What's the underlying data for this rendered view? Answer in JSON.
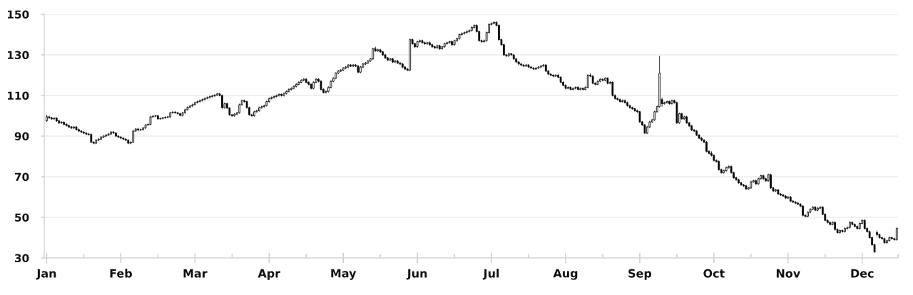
{
  "chart_data": {
    "type": "candlestick",
    "categories": [
      "Jan",
      null,
      null,
      null,
      null,
      null,
      null,
      null,
      null,
      null,
      null,
      null,
      null,
      null,
      null,
      null,
      null,
      null,
      null,
      null,
      null,
      null,
      null,
      null,
      null,
      null,
      null,
      null,
      null,
      null,
      "Feb",
      null,
      null,
      null,
      null,
      null,
      null,
      null,
      null,
      null,
      null,
      null,
      null,
      null,
      null,
      null,
      null,
      null,
      null,
      null,
      null,
      null,
      null,
      null,
      null,
      null,
      null,
      null,
      null,
      null,
      "Mar",
      null,
      null,
      null,
      null,
      null,
      null,
      null,
      null,
      null,
      null,
      null,
      null,
      null,
      null,
      null,
      null,
      null,
      null,
      null,
      null,
      null,
      null,
      null,
      null,
      null,
      null,
      null,
      null,
      null,
      "Apr",
      null,
      null,
      null,
      null,
      null,
      null,
      null,
      null,
      null,
      null,
      null,
      null,
      null,
      null,
      null,
      null,
      null,
      null,
      null,
      null,
      null,
      null,
      null,
      null,
      null,
      null,
      null,
      null,
      null,
      "May",
      null,
      null,
      null,
      null,
      null,
      null,
      null,
      null,
      null,
      null,
      null,
      null,
      null,
      null,
      null,
      null,
      null,
      null,
      null,
      null,
      null,
      null,
      null,
      null,
      null,
      null,
      null,
      null,
      null,
      "Jun",
      null,
      null,
      null,
      null,
      null,
      null,
      null,
      null,
      null,
      null,
      null,
      null,
      null,
      null,
      null,
      null,
      null,
      null,
      null,
      null,
      null,
      null,
      null,
      null,
      null,
      null,
      null,
      null,
      null,
      "Jul",
      null,
      null,
      null,
      null,
      null,
      null,
      null,
      null,
      null,
      null,
      null,
      null,
      null,
      null,
      null,
      null,
      null,
      null,
      null,
      null,
      null,
      null,
      null,
      null,
      null,
      null,
      null,
      null,
      null,
      "Aug",
      null,
      null,
      null,
      null,
      null,
      null,
      null,
      null,
      null,
      null,
      null,
      null,
      null,
      null,
      null,
      null,
      null,
      null,
      null,
      null,
      null,
      null,
      null,
      null,
      null,
      null,
      null,
      null,
      null,
      "Sep",
      null,
      null,
      null,
      null,
      null,
      null,
      null,
      null,
      null,
      null,
      null,
      null,
      null,
      null,
      null,
      null,
      null,
      null,
      null,
      null,
      null,
      null,
      null,
      null,
      null,
      null,
      null,
      null,
      null,
      "Oct",
      null,
      null,
      null,
      null,
      null,
      null,
      null,
      null,
      null,
      null,
      null,
      null,
      null,
      null,
      null,
      null,
      null,
      null,
      null,
      null,
      null,
      null,
      null,
      null,
      null,
      null,
      null,
      null,
      null,
      "Nov",
      null,
      null,
      null,
      null,
      null,
      null,
      null,
      null,
      null,
      null,
      null,
      null,
      null,
      null,
      null,
      null,
      null,
      null,
      null,
      null,
      null,
      null,
      null,
      null,
      null,
      null,
      null,
      null,
      null,
      "Dec",
      null,
      null,
      null,
      null,
      null,
      null,
      null,
      null,
      null,
      null,
      null,
      null,
      null,
      null
    ],
    "ohlc": [
      [
        97.5,
        100.5,
        97,
        99.5
      ],
      [
        99.5,
        100,
        98.5,
        99
      ],
      [
        99,
        99.5,
        98,
        98.5
      ],
      [
        98.5,
        99.3,
        98,
        98.8
      ],
      [
        98.8,
        99.3,
        97,
        97.5
      ],
      [
        97.5,
        98,
        96,
        96.5
      ],
      [
        96.5,
        97.3,
        96,
        96.8
      ],
      [
        96.8,
        97.3,
        95.3,
        95.8
      ],
      [
        95.8,
        96.3,
        94.7,
        95.2
      ],
      [
        95.2,
        95.7,
        94,
        94.5
      ],
      [
        94.5,
        95,
        93.5,
        94
      ],
      [
        94,
        95,
        93.5,
        94.5
      ],
      [
        94.5,
        95,
        92.7,
        93.2
      ],
      [
        93.2,
        93.7,
        92,
        92.5
      ],
      [
        92.5,
        93,
        91.5,
        92
      ],
      [
        92,
        92.5,
        91,
        91.5
      ],
      [
        91.5,
        92,
        90.5,
        91
      ],
      [
        91,
        91.5,
        90.3,
        90.8
      ],
      [
        90.8,
        91.3,
        86.5,
        87
      ],
      [
        87,
        87.5,
        86,
        86.5
      ],
      [
        86.5,
        88.5,
        86,
        88
      ],
      [
        88,
        89,
        87.5,
        88.5
      ],
      [
        88.5,
        90,
        88,
        89.5
      ],
      [
        89.5,
        90.5,
        89,
        90
      ],
      [
        90,
        91,
        89.5,
        90.5
      ],
      [
        90.5,
        91.5,
        90,
        91
      ],
      [
        91,
        92.5,
        90.5,
        92
      ],
      [
        92,
        92.5,
        91,
        91.5
      ],
      [
        91.5,
        92,
        89.5,
        90
      ],
      [
        90,
        90.5,
        89,
        89.5
      ],
      [
        89.5,
        90,
        88.5,
        89
      ],
      [
        89,
        89.5,
        88,
        88.5
      ],
      [
        88.5,
        89,
        87.5,
        88
      ],
      [
        88,
        88.5,
        86,
        86.5
      ],
      [
        86.5,
        87.5,
        86,
        87
      ],
      [
        87,
        93,
        86.5,
        92.5
      ],
      [
        92.5,
        94,
        92,
        93.5
      ],
      [
        93.5,
        94,
        92.5,
        93
      ],
      [
        93,
        93.7,
        92.5,
        93.2
      ],
      [
        93.2,
        94.5,
        92.7,
        94
      ],
      [
        94,
        96,
        93.5,
        95.5
      ],
      [
        95.5,
        96.3,
        95,
        95.8
      ],
      [
        95.8,
        100,
        95.3,
        99.5
      ],
      [
        99.5,
        100.3,
        99,
        99.8
      ],
      [
        99.8,
        100.5,
        99.3,
        100
      ],
      [
        100,
        100.5,
        98,
        98.5
      ],
      [
        98.5,
        99.2,
        98,
        98.7
      ],
      [
        98.7,
        99.5,
        98.2,
        99
      ],
      [
        99,
        99.8,
        98.5,
        99.3
      ],
      [
        99.3,
        100,
        98.8,
        99.5
      ],
      [
        99.5,
        102,
        99,
        101.5
      ],
      [
        101.5,
        102.3,
        101,
        101.8
      ],
      [
        101.8,
        102.3,
        101,
        101.5
      ],
      [
        101.5,
        102,
        100.5,
        101
      ],
      [
        101,
        101.5,
        99.7,
        100.2
      ],
      [
        100.2,
        102,
        99.7,
        101.5
      ],
      [
        101.5,
        103.5,
        101,
        103
      ],
      [
        103,
        104.7,
        102.5,
        104.2
      ],
      [
        104.2,
        105.3,
        103.7,
        104.8
      ],
      [
        104.8,
        106,
        104.3,
        105.5
      ],
      [
        105.5,
        107,
        105,
        106.5
      ],
      [
        106.5,
        107.5,
        106,
        107
      ],
      [
        107,
        108,
        106.5,
        107.5
      ],
      [
        107.5,
        108.5,
        107,
        108
      ],
      [
        108,
        109.1,
        107.5,
        108.6
      ],
      [
        108.6,
        109.5,
        108.1,
        109
      ],
      [
        109,
        110,
        108.5,
        109.5
      ],
      [
        109.5,
        110.3,
        109,
        109.8
      ],
      [
        109.8,
        110.7,
        109.3,
        110.2
      ],
      [
        110.2,
        111.3,
        109.7,
        110.8
      ],
      [
        110.8,
        111.3,
        109.5,
        110
      ],
      [
        110,
        110.5,
        103.5,
        104
      ],
      [
        104,
        106.5,
        103.5,
        106
      ],
      [
        106,
        106.5,
        103.3,
        103.8
      ],
      [
        103.8,
        104.3,
        100,
        100.5
      ],
      [
        100.5,
        101,
        99.5,
        100
      ],
      [
        100,
        101.3,
        99.5,
        100.8
      ],
      [
        100.8,
        102,
        100.3,
        101.5
      ],
      [
        101.5,
        106,
        101,
        105.5
      ],
      [
        105.5,
        108,
        105,
        107.5
      ],
      [
        107.5,
        108,
        106.5,
        107
      ],
      [
        107,
        107.5,
        103.5,
        104
      ],
      [
        104,
        104.5,
        100,
        100.5
      ],
      [
        100.5,
        101,
        99.5,
        100
      ],
      [
        100,
        102.5,
        99.5,
        102
      ],
      [
        102,
        103,
        101.5,
        102.5
      ],
      [
        102.5,
        104.5,
        102,
        104
      ],
      [
        104,
        105,
        103.5,
        104.5
      ],
      [
        104.5,
        105.5,
        104,
        105
      ],
      [
        105,
        107.5,
        104.5,
        107
      ],
      [
        107,
        109,
        106.5,
        108.5
      ],
      [
        108.5,
        109.5,
        108,
        109
      ],
      [
        109,
        110,
        108.5,
        109.5
      ],
      [
        109.5,
        110.5,
        109,
        110
      ],
      [
        110,
        111,
        109.5,
        110.5
      ],
      [
        110.5,
        111,
        109.5,
        110
      ],
      [
        110,
        111.5,
        109.5,
        111
      ],
      [
        111,
        112.5,
        110.5,
        112
      ],
      [
        112,
        113.5,
        111.5,
        113
      ],
      [
        113,
        114,
        112.5,
        113.5
      ],
      [
        113.5,
        115,
        113,
        114.5
      ],
      [
        114.5,
        116,
        114,
        115.5
      ],
      [
        115.5,
        117,
        115,
        116.5
      ],
      [
        116.5,
        118,
        116,
        117.5
      ],
      [
        117.5,
        118.5,
        117,
        118
      ],
      [
        118,
        118.5,
        116,
        116.5
      ],
      [
        116.5,
        117,
        115,
        115.5
      ],
      [
        115.5,
        116,
        113,
        113.5
      ],
      [
        113.5,
        117,
        113,
        116.5
      ],
      [
        116.5,
        118.5,
        116,
        118
      ],
      [
        118,
        118.5,
        116.5,
        117
      ],
      [
        117,
        117.5,
        112.5,
        113
      ],
      [
        113,
        113.5,
        111,
        111.5
      ],
      [
        111.5,
        112.5,
        111,
        112
      ],
      [
        112,
        114.5,
        111.5,
        114
      ],
      [
        114,
        117.5,
        113.5,
        117
      ],
      [
        117,
        119,
        116.5,
        118.5
      ],
      [
        118.5,
        121.5,
        118,
        121
      ],
      [
        121,
        122.5,
        120.5,
        122
      ],
      [
        122,
        123,
        121.5,
        122.5
      ],
      [
        122.5,
        124,
        122,
        123.5
      ],
      [
        123.5,
        124.5,
        123,
        124
      ],
      [
        124,
        125.5,
        123.5,
        125
      ],
      [
        125,
        125.5,
        124,
        124.5
      ],
      [
        124.5,
        125.5,
        124,
        125
      ],
      [
        125,
        125.5,
        124,
        124.5
      ],
      [
        124.5,
        125,
        121,
        121.5
      ],
      [
        121.5,
        124.5,
        121,
        124
      ],
      [
        124,
        126,
        123.5,
        125.5
      ],
      [
        125.5,
        126.5,
        125,
        126
      ],
      [
        126,
        127.5,
        125.5,
        127
      ],
      [
        127,
        128.5,
        126.5,
        128
      ],
      [
        128,
        133.5,
        127.5,
        133
      ],
      [
        133,
        134,
        131.5,
        132
      ],
      [
        132,
        133,
        131.5,
        132.5
      ],
      [
        132.5,
        133,
        131,
        131.5
      ],
      [
        131.5,
        132,
        129.5,
        130
      ],
      [
        130,
        130.5,
        128,
        128.5
      ],
      [
        128.5,
        129,
        127,
        127.5
      ],
      [
        127.5,
        128.5,
        127,
        128
      ],
      [
        128,
        128.5,
        126,
        126.5
      ],
      [
        126.5,
        127.5,
        126,
        127
      ],
      [
        127,
        127.5,
        125.5,
        126
      ],
      [
        126,
        126.5,
        125,
        125.5
      ],
      [
        125.5,
        126,
        123.5,
        124
      ],
      [
        124,
        124.5,
        122.5,
        123
      ],
      [
        123,
        123.5,
        122,
        122.5
      ],
      [
        122.5,
        138,
        122,
        137.5
      ],
      [
        137.5,
        138,
        135,
        135.5
      ],
      [
        135.5,
        136,
        133.5,
        134
      ],
      [
        134,
        137,
        133.5,
        136.5
      ],
      [
        136.5,
        137.5,
        136,
        137
      ],
      [
        137,
        137.5,
        135.5,
        136
      ],
      [
        136,
        136.5,
        135,
        135.5
      ],
      [
        135.5,
        136.5,
        135,
        136
      ],
      [
        136,
        136.5,
        134.5,
        135
      ],
      [
        135,
        135.5,
        133.5,
        134
      ],
      [
        134,
        134.5,
        133,
        133.5
      ],
      [
        133.5,
        135,
        133,
        134.5
      ],
      [
        134.5,
        135,
        132.5,
        133
      ],
      [
        133,
        134.5,
        132.5,
        134
      ],
      [
        134,
        136,
        133.5,
        135.5
      ],
      [
        135.5,
        136.5,
        135,
        136
      ],
      [
        136,
        137,
        135.5,
        136.5
      ],
      [
        136.5,
        137,
        134.5,
        135
      ],
      [
        135,
        137.5,
        134.5,
        137
      ],
      [
        137,
        138.5,
        136.5,
        138
      ],
      [
        138,
        140.5,
        137.5,
        140
      ],
      [
        140,
        141,
        139.5,
        140.5
      ],
      [
        140.5,
        141.5,
        140,
        141
      ],
      [
        141,
        142,
        140.5,
        141.5
      ],
      [
        141.5,
        142.5,
        141,
        142
      ],
      [
        142,
        144,
        141.5,
        143.5
      ],
      [
        143.5,
        145,
        143,
        144.5
      ],
      [
        144.5,
        145,
        141,
        141.5
      ],
      [
        141.5,
        142,
        136.5,
        137
      ],
      [
        137,
        137.5,
        136,
        136.5
      ],
      [
        136.5,
        137.5,
        136,
        137
      ],
      [
        137,
        141.5,
        136.5,
        141
      ],
      [
        141,
        145.5,
        140.5,
        145
      ],
      [
        145,
        146,
        144.5,
        145.5
      ],
      [
        145.5,
        146.5,
        145,
        146
      ],
      [
        146,
        146.5,
        144,
        144.5
      ],
      [
        144.5,
        145,
        137,
        137.5
      ],
      [
        137.5,
        138,
        134.5,
        135
      ],
      [
        135,
        135.5,
        129.5,
        130
      ],
      [
        130,
        130.5,
        129,
        129.5
      ],
      [
        129.5,
        131,
        129,
        130.5
      ],
      [
        130.5,
        131,
        129.5,
        130
      ],
      [
        130,
        130.5,
        127.5,
        128
      ],
      [
        128,
        128.5,
        126,
        126.5
      ],
      [
        126.5,
        127,
        125,
        125.5
      ],
      [
        125.5,
        126,
        124.5,
        125
      ],
      [
        125,
        125.5,
        124,
        124.5
      ],
      [
        124.5,
        125.5,
        124,
        125
      ],
      [
        125,
        125.5,
        123.5,
        124
      ],
      [
        124,
        124.5,
        123,
        123.5
      ],
      [
        123.5,
        124,
        122.5,
        123
      ],
      [
        123,
        124,
        122.5,
        123.5
      ],
      [
        123.5,
        124.5,
        123,
        124
      ],
      [
        124,
        125,
        123.5,
        124.5
      ],
      [
        124.5,
        125.5,
        124,
        125
      ],
      [
        125,
        125.5,
        121.5,
        122
      ],
      [
        122,
        122.5,
        120,
        120.5
      ],
      [
        120.5,
        121,
        119.5,
        120
      ],
      [
        120,
        120.5,
        119,
        119.5
      ],
      [
        119.5,
        120.5,
        119,
        120
      ],
      [
        120,
        120.5,
        118.5,
        119
      ],
      [
        119,
        119.5,
        116,
        116.5
      ],
      [
        116.5,
        117,
        114.5,
        115
      ],
      [
        115,
        115.5,
        113,
        113.5
      ],
      [
        113.5,
        114.5,
        113,
        114
      ],
      [
        114,
        114.5,
        112.5,
        113
      ],
      [
        113,
        114,
        112.5,
        113.5
      ],
      [
        113.5,
        114.5,
        113,
        114
      ],
      [
        114,
        114.5,
        112.5,
        113
      ],
      [
        113,
        114,
        112.5,
        113.5
      ],
      [
        113.5,
        114,
        112.5,
        113
      ],
      [
        113,
        114.5,
        112.5,
        114
      ],
      [
        114,
        120.5,
        113.5,
        120
      ],
      [
        120,
        121,
        119,
        119.5
      ],
      [
        119.5,
        120,
        115.5,
        116
      ],
      [
        116,
        116.5,
        115,
        115.5
      ],
      [
        115.5,
        117.5,
        115,
        117
      ],
      [
        117,
        118.5,
        116.5,
        118
      ],
      [
        118,
        118.5,
        117,
        117.5
      ],
      [
        117.5,
        119,
        117,
        118.5
      ],
      [
        118.5,
        119,
        115.5,
        116
      ],
      [
        116,
        117,
        115.5,
        116.5
      ],
      [
        116.5,
        117,
        109.5,
        110
      ],
      [
        110,
        110.5,
        108,
        108.5
      ],
      [
        108.5,
        109,
        107.5,
        108
      ],
      [
        108,
        108.5,
        106.5,
        107
      ],
      [
        107,
        108,
        106.5,
        107.5
      ],
      [
        107.5,
        108,
        106,
        106.5
      ],
      [
        106.5,
        107,
        104.5,
        105
      ],
      [
        105,
        105.5,
        103.5,
        104
      ],
      [
        104,
        104.5,
        103,
        103.5
      ],
      [
        103.5,
        104,
        102,
        102.5
      ],
      [
        102.5,
        103,
        101.5,
        102
      ],
      [
        102,
        102.5,
        96.5,
        97
      ],
      [
        97,
        97.5,
        95,
        95.5
      ],
      [
        95.5,
        96,
        91,
        91.5
      ],
      [
        91.5,
        95,
        91,
        94.5
      ],
      [
        94.5,
        97.5,
        94,
        97
      ],
      [
        97,
        98.5,
        96.5,
        98
      ],
      [
        98,
        102.5,
        97.5,
        102
      ],
      [
        102,
        105,
        101.5,
        104.5
      ],
      [
        104.5,
        129.5,
        104,
        121
      ],
      [
        108,
        109,
        104.5,
        106
      ],
      [
        106,
        107,
        105.5,
        106.5
      ],
      [
        106.5,
        107.5,
        106,
        107
      ],
      [
        107,
        107.5,
        105.5,
        106
      ],
      [
        106,
        108,
        105.5,
        107.5
      ],
      [
        107.5,
        108,
        106,
        106.5
      ],
      [
        106.5,
        107,
        96,
        96.5
      ],
      [
        96.5,
        101.5,
        96,
        101
      ],
      [
        101,
        101.5,
        98,
        98.5
      ],
      [
        98.5,
        100,
        98,
        99.5
      ],
      [
        99.5,
        100,
        96,
        96.5
      ],
      [
        96.5,
        97,
        94.5,
        95
      ],
      [
        95,
        95.5,
        92.5,
        93
      ],
      [
        93,
        93.5,
        92,
        92.5
      ],
      [
        92.5,
        93,
        90,
        90.5
      ],
      [
        90.5,
        91,
        88.5,
        89
      ],
      [
        89,
        89.5,
        87.5,
        88
      ],
      [
        88,
        88.5,
        86.5,
        87
      ],
      [
        87,
        87.5,
        82,
        82.5
      ],
      [
        82.5,
        83,
        81,
        81.5
      ],
      [
        81.5,
        82.5,
        80,
        80.5
      ],
      [
        80.5,
        81,
        77.5,
        78
      ],
      [
        78,
        78.5,
        77,
        77.5
      ],
      [
        77.5,
        78,
        73,
        73.5
      ],
      [
        73.5,
        74,
        71.5,
        72
      ],
      [
        72,
        73.5,
        71.5,
        73
      ],
      [
        73,
        75,
        72.5,
        74.5
      ],
      [
        74.5,
        75.5,
        74,
        75
      ],
      [
        75,
        75.5,
        71.5,
        72
      ],
      [
        72,
        72.5,
        69,
        69.5
      ],
      [
        69.5,
        70,
        68,
        68.5
      ],
      [
        68.5,
        69,
        66.5,
        67
      ],
      [
        67,
        67.5,
        65.5,
        66
      ],
      [
        66,
        66.5,
        65,
        65.5
      ],
      [
        65.5,
        66,
        63.5,
        64
      ],
      [
        64,
        65,
        63.5,
        64.5
      ],
      [
        64.5,
        68,
        64,
        67.5
      ],
      [
        67.5,
        68.5,
        67,
        68
      ],
      [
        68,
        68.5,
        66,
        66.5
      ],
      [
        66.5,
        69.5,
        66,
        69
      ],
      [
        69,
        71,
        68.5,
        70.5
      ],
      [
        70.5,
        71,
        68.5,
        69
      ],
      [
        69,
        69.5,
        67.5,
        68
      ],
      [
        68,
        71.5,
        67.5,
        71
      ],
      [
        71,
        71.5,
        64,
        64.5
      ],
      [
        64.5,
        65,
        62.5,
        63
      ],
      [
        63,
        64,
        62.5,
        63.5
      ],
      [
        63.5,
        64,
        61,
        61.5
      ],
      [
        61.5,
        62,
        60.5,
        61
      ],
      [
        61,
        61.5,
        60,
        60.5
      ],
      [
        60.5,
        61,
        59,
        59.5
      ],
      [
        59.5,
        60.5,
        59,
        60
      ],
      [
        60,
        60.5,
        57.5,
        58
      ],
      [
        58,
        58.5,
        57,
        57.5
      ],
      [
        57.5,
        58,
        56.5,
        57
      ],
      [
        57,
        57.5,
        56,
        56.5
      ],
      [
        56.5,
        57,
        55,
        55.5
      ],
      [
        55.5,
        56,
        50.5,
        51
      ],
      [
        51,
        51.5,
        50,
        50.5
      ],
      [
        50.5,
        53,
        50,
        52.5
      ],
      [
        52.5,
        54.5,
        52,
        54
      ],
      [
        54,
        55.5,
        53.5,
        55
      ],
      [
        55,
        55.5,
        53,
        53.5
      ],
      [
        53.5,
        55,
        53,
        54.5
      ],
      [
        54.5,
        55.5,
        54,
        55
      ],
      [
        55,
        55.5,
        51,
        51.5
      ],
      [
        51.5,
        52,
        48,
        48.5
      ],
      [
        48.5,
        49,
        47,
        47.5
      ],
      [
        47.5,
        48,
        46,
        46.5
      ],
      [
        46.5,
        48,
        46,
        47.5
      ],
      [
        47.5,
        48,
        43.5,
        44
      ],
      [
        44,
        44.5,
        42,
        42.5
      ],
      [
        42.5,
        44,
        42,
        43.5
      ],
      [
        43.5,
        44,
        42.5,
        43
      ],
      [
        43,
        45,
        42.5,
        44.5
      ],
      [
        44.5,
        45.5,
        44,
        45
      ],
      [
        45,
        48,
        44.5,
        47.5
      ],
      [
        47.5,
        48,
        46,
        46.5
      ],
      [
        46.5,
        47,
        45,
        45.5
      ],
      [
        45.5,
        46,
        44,
        44.5
      ],
      [
        44.5,
        47.5,
        44,
        47
      ],
      [
        47,
        49,
        46.5,
        48.5
      ],
      [
        48.5,
        49,
        44,
        44.5
      ],
      [
        44.5,
        45,
        42.5,
        43
      ],
      [
        43,
        43.5,
        39.5,
        40
      ],
      [
        40,
        40.5,
        36,
        36.5
      ],
      [
        36.5,
        37,
        32.5,
        33
      ],
      [
        42.5,
        43.5,
        40.5,
        41.5
      ],
      [
        41.5,
        42,
        39.5,
        40
      ],
      [
        40,
        40.5,
        39,
        39.5
      ],
      [
        39.5,
        40,
        37,
        37.5
      ],
      [
        37.5,
        39,
        37,
        38.5
      ],
      [
        38.5,
        40.5,
        38,
        40
      ],
      [
        40,
        40.5,
        39,
        39.5
      ],
      [
        39.5,
        40,
        38.5,
        39
      ],
      [
        39,
        45,
        38.5,
        44.5
      ]
    ],
    "ylim": [
      30,
      150
    ],
    "yticks": [
      30,
      50,
      70,
      90,
      110,
      130,
      150
    ],
    "grid": "y"
  }
}
